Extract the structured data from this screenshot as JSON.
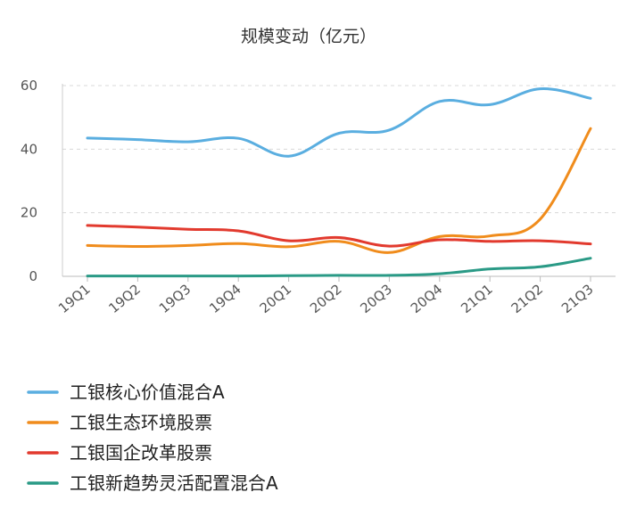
{
  "chart_data": {
    "type": "line",
    "title": "规模变动（亿元）",
    "xlabel": "",
    "ylabel": "",
    "ylim": [
      0,
      60
    ],
    "yticks": [
      0,
      20,
      40,
      60
    ],
    "grid": true,
    "legend_position": "bottom",
    "categories": [
      "19Q1",
      "19Q2",
      "19Q3",
      "19Q4",
      "20Q1",
      "20Q2",
      "20Q3",
      "20Q4",
      "21Q1",
      "21Q2",
      "21Q3"
    ],
    "series": [
      {
        "name": "工银核心价值混合A",
        "color": "#5aaee0",
        "values": [
          43.5,
          43,
          42.3,
          43.4,
          37.8,
          45,
          46,
          55,
          54,
          59,
          56
        ]
      },
      {
        "name": "工银生态环境股票",
        "color": "#f08c1c",
        "values": [
          9.7,
          9.4,
          9.7,
          10.3,
          9.3,
          11,
          7.5,
          12.5,
          12.7,
          18,
          46.5
        ]
      },
      {
        "name": "工银国企改革股票",
        "color": "#e23a2e",
        "values": [
          16,
          15.5,
          14.8,
          14.3,
          11.2,
          12.2,
          9.5,
          11.5,
          11,
          11.2,
          10.2
        ]
      },
      {
        "name": "工银新趋势灵活配置混合A",
        "color": "#2a9a86",
        "values": [
          0.1,
          0.1,
          0.1,
          0.1,
          0.2,
          0.3,
          0.3,
          0.8,
          2.3,
          3,
          5.7
        ]
      }
    ]
  }
}
